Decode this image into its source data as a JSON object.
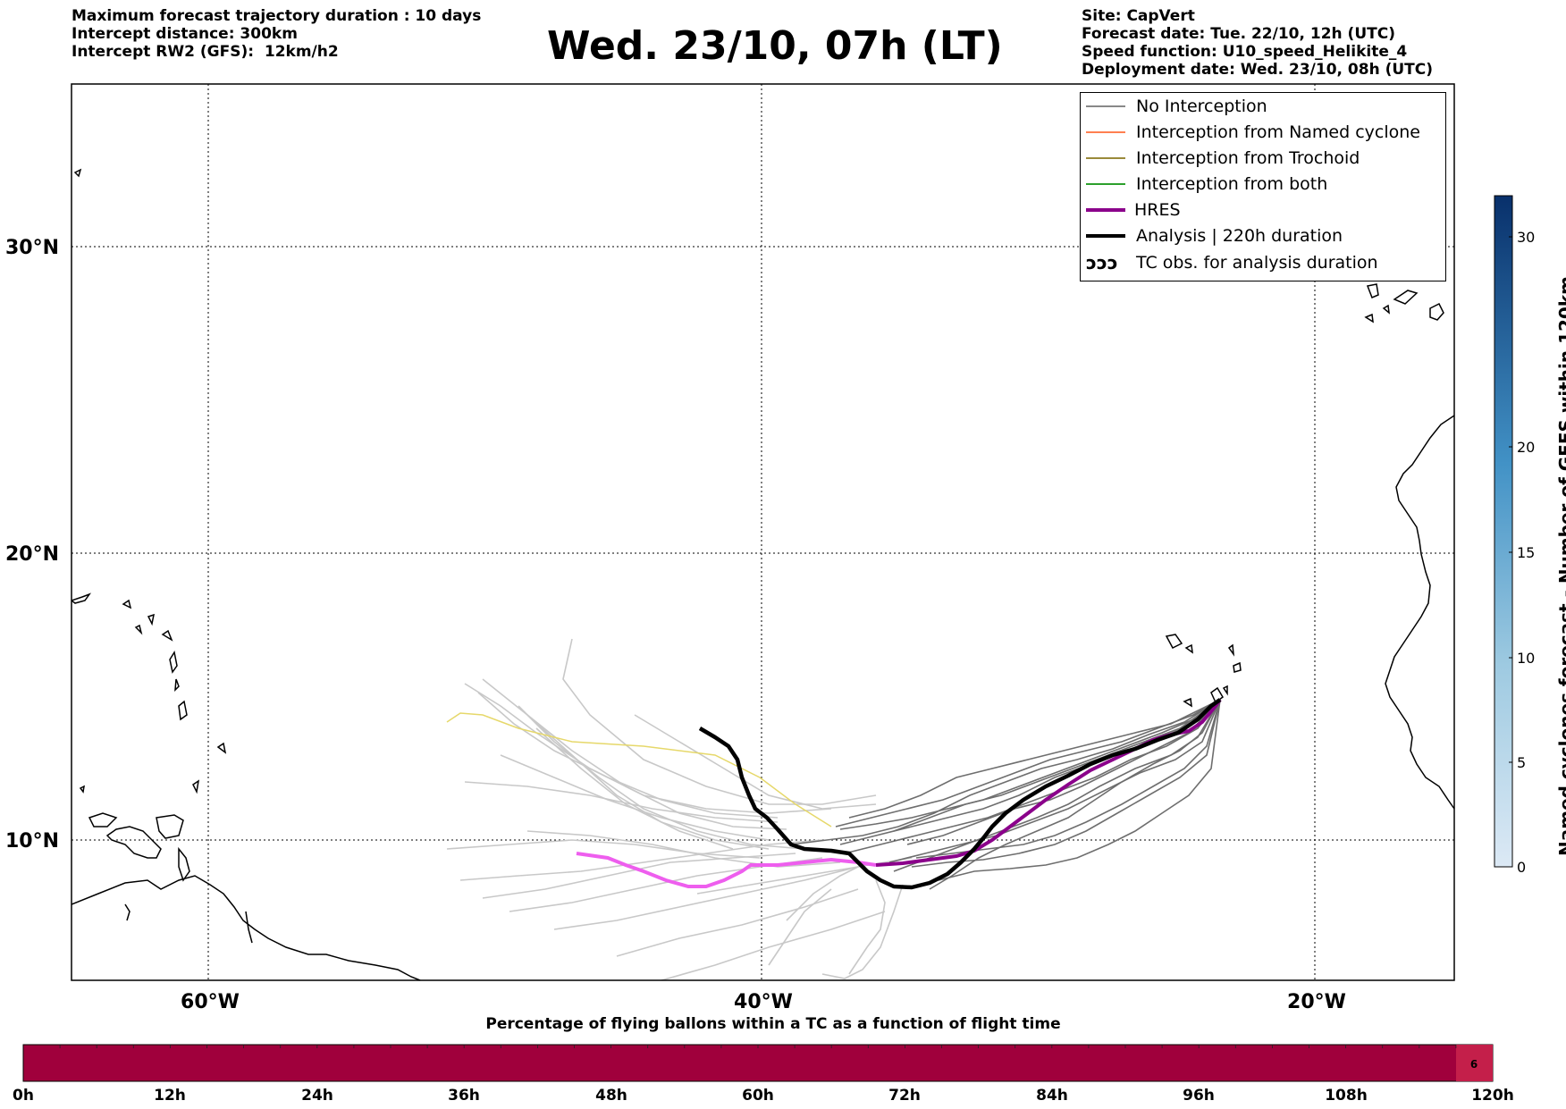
{
  "header": {
    "left_lines": [
      "Maximum forecast trajectory duration : 10 days",
      "Intercept distance: 300km",
      "Intercept RW2 (GFS):  12km/h2"
    ],
    "title": "Wed. 23/10, 07h (LT)",
    "right_lines": [
      "Site: CapVert",
      "Forecast date: Tue. 22/10, 12h (UTC)",
      "Speed function: U10_speed_Helikite_4",
      "Deployment date: Wed. 23/10, 08h (UTC)"
    ]
  },
  "legend": [
    {
      "label": "No Interception",
      "color": "#888888",
      "style": "thin"
    },
    {
      "label": "Interception from Named cyclone",
      "color": "#ff7f50",
      "style": "thin"
    },
    {
      "label": "Interception from Trochoid",
      "color": "#9a8a3a",
      "style": "thin"
    },
    {
      "label": "Interception from both",
      "color": "#2ca02c",
      "style": "thin"
    },
    {
      "label": "HRES",
      "color": "#8b008b",
      "style": "thick"
    },
    {
      "label": "Analysis | 220h duration",
      "color": "#000000",
      "style": "thick"
    },
    {
      "label": "TC obs. for analysis duration",
      "color": "#000000",
      "style": "symbol",
      "symbol": "ↄↄↄ"
    }
  ],
  "axes": {
    "x_ticks": [
      "60°W",
      "40°W",
      "20°W"
    ],
    "y_ticks": [
      "30°N",
      "20°N",
      "10°N"
    ]
  },
  "right_colorbar": {
    "label": "Named cyclones forecast - Number of GEFS within 120km",
    "ticks": [
      "0",
      "5",
      "10",
      "15",
      "20",
      "30"
    ],
    "color_low": "#dce9f5",
    "color_high": "#08306b"
  },
  "bottom_colorbar": {
    "title": "Percentage of flying ballons within a TC as a function of flight time",
    "ticks": [
      "0h",
      "12h",
      "24h",
      "36h",
      "48h",
      "60h",
      "72h",
      "84h",
      "96h",
      "108h",
      "120h"
    ],
    "cell_value": "6",
    "fill_color": "#a0003c",
    "cell_color": "#c41f4a"
  }
}
